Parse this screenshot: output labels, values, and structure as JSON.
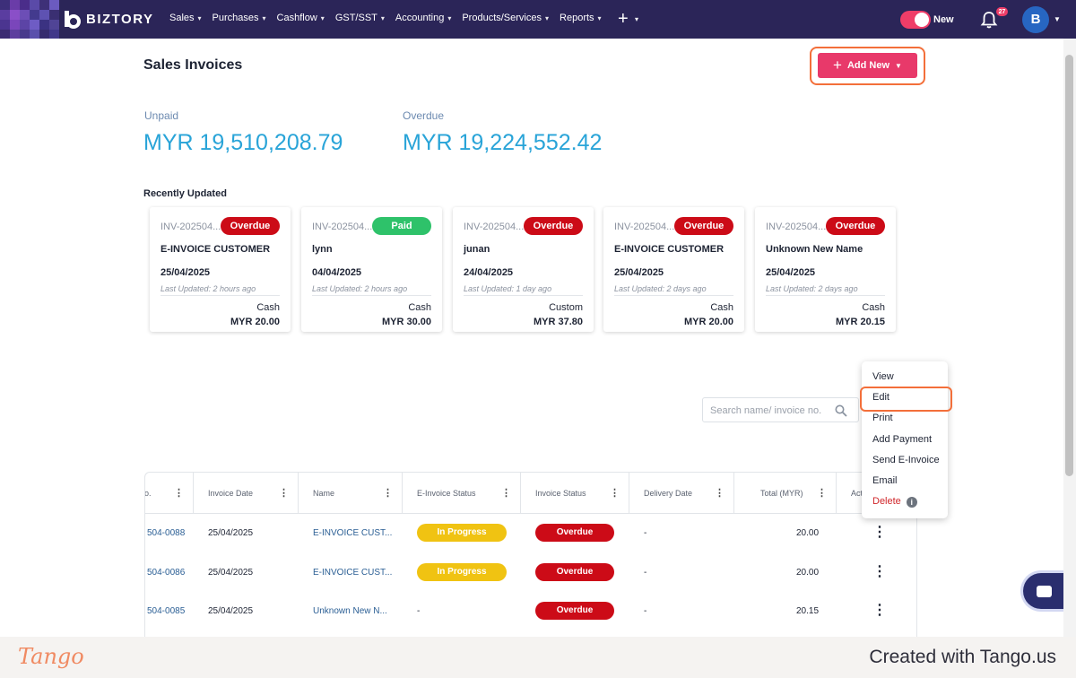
{
  "topbar": {
    "brand": "BIZTORY",
    "nav": [
      "Sales",
      "Purchases",
      "Cashflow",
      "GST/SST",
      "Accounting",
      "Products/Services",
      "Reports"
    ],
    "add_icon": "plus-icon",
    "toggle_label": "New",
    "notification_count": "27",
    "avatar_initial": "B",
    "colors": {
      "bar": "#2b2558",
      "accent": "#ee3d68"
    }
  },
  "page": {
    "title": "Sales Invoices",
    "add_new_label": "Add New",
    "unpaid_label": "Unpaid",
    "unpaid_value": "MYR 19,510,208.79",
    "overdue_label": "Overdue",
    "overdue_value": "MYR 19,224,552.42",
    "recent_title": "Recently Updated"
  },
  "recent_cards": [
    {
      "inv": "INV-202504...",
      "status": "Overdue",
      "name": "E-INVOICE CUSTOMER",
      "date": "25/04/2025",
      "updated": "Last Updated: 2 hours ago",
      "term": "Cash",
      "amount": "MYR 20.00"
    },
    {
      "inv": "INV-202504...",
      "status": "Paid",
      "name": "lynn",
      "date": "04/04/2025",
      "updated": "Last Updated: 2 hours ago",
      "term": "Cash",
      "amount": "MYR 30.00"
    },
    {
      "inv": "INV-202504...",
      "status": "Overdue",
      "name": "junan",
      "date": "24/04/2025",
      "updated": "Last Updated: 1 day ago",
      "term": "Custom",
      "amount": "MYR 37.80"
    },
    {
      "inv": "INV-202504...",
      "status": "Overdue",
      "name": "E-INVOICE CUSTOMER",
      "date": "25/04/2025",
      "updated": "Last Updated: 2 days ago",
      "term": "Cash",
      "amount": "MYR 20.00"
    },
    {
      "inv": "INV-202504...",
      "status": "Overdue",
      "name": "Unknown New Name",
      "date": "25/04/2025",
      "updated": "Last Updated: 2 days ago",
      "term": "Cash",
      "amount": "MYR 20.15"
    }
  ],
  "search": {
    "placeholder": "Search name/ invoice no."
  },
  "context_menu": [
    "View",
    "Edit",
    "Print",
    "Add Payment",
    "Send E-Invoice",
    "Email",
    "Delete"
  ],
  "table": {
    "headers": [
      "o.",
      "Invoice Date",
      "Name",
      "E-Invoice Status",
      "Invoice Status",
      "Delivery Date",
      "Total (MYR)",
      "Act"
    ],
    "rows": [
      {
        "no": "504-0088",
        "date": "25/04/2025",
        "name": "E-INVOICE CUST...",
        "einvoice": "In Progress",
        "status": "Overdue",
        "delivery": "-",
        "total": "20.00"
      },
      {
        "no": "504-0086",
        "date": "25/04/2025",
        "name": "E-INVOICE CUST...",
        "einvoice": "In Progress",
        "status": "Overdue",
        "delivery": "-",
        "total": "20.00"
      },
      {
        "no": "504-0085",
        "date": "25/04/2025",
        "name": "Unknown New N...",
        "einvoice": "-",
        "status": "Overdue",
        "delivery": "-",
        "total": "20.15"
      }
    ]
  },
  "footer": {
    "logo": "Tango",
    "created": "Created with Tango.us"
  }
}
